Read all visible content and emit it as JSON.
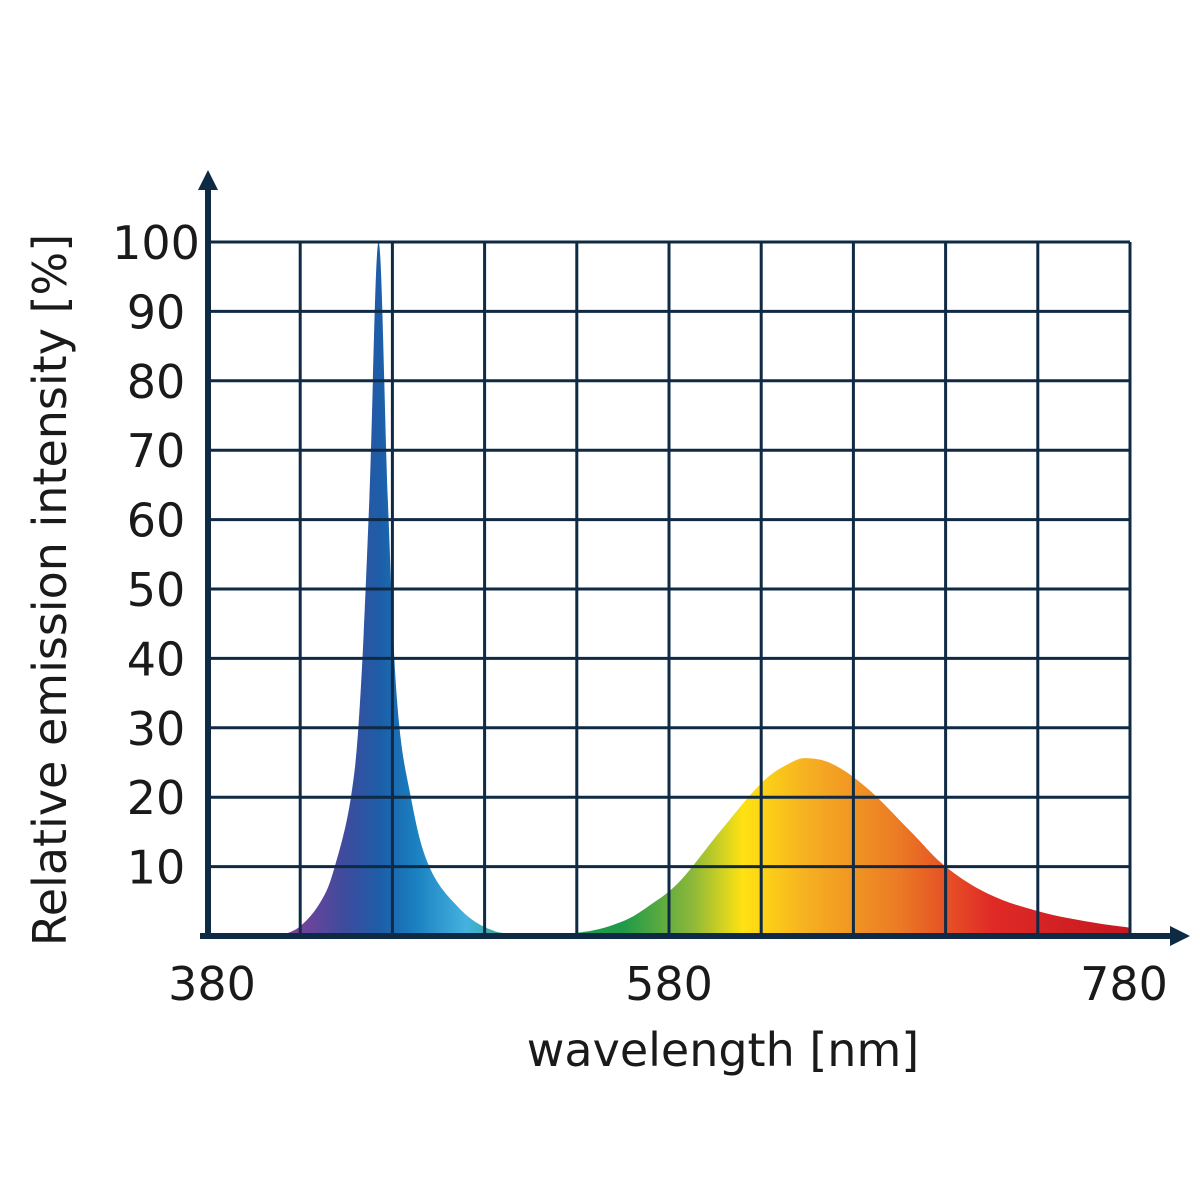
{
  "chart_data": {
    "type": "area",
    "title": "",
    "xlabel": "wavelength [nm]",
    "ylabel": "Relative emission intensity [%]",
    "xlim": [
      380,
      780
    ],
    "ylim": [
      0,
      100
    ],
    "grid": true,
    "x_grid_step": 40,
    "y_grid_step": 10,
    "x_tick_labels": [
      "380",
      "580",
      "780"
    ],
    "x_tick_values": [
      380,
      580,
      780
    ],
    "y_tick_labels": [
      "10",
      "20",
      "30",
      "40",
      "50",
      "60",
      "70",
      "80",
      "90",
      "100"
    ],
    "y_tick_values": [
      10,
      20,
      30,
      40,
      50,
      60,
      70,
      80,
      90,
      100
    ],
    "series": [
      {
        "x": [
          411,
          420,
          429,
          435,
          442,
          446,
          450,
          454,
          458,
          462,
          468,
          476,
          489,
          502,
          515,
          541,
          559,
          572,
          585,
          602,
          620,
          633,
          641,
          652,
          667,
          685,
          700,
          719,
          741,
          763,
          780
        ],
        "y": [
          0,
          1.4,
          5,
          10,
          20,
          34,
          63,
          100,
          63,
          34,
          20,
          10,
          4,
          1,
          0.3,
          0.5,
          2,
          4.5,
          8,
          15,
          22,
          25,
          25.6,
          24.6,
          21,
          15,
          10,
          6,
          3.5,
          2,
          1.2
        ]
      }
    ],
    "fill": "spectral gradient by wavelength",
    "spectrum_colors": [
      {
        "nm": 411,
        "color": "#8a3f98"
      },
      {
        "nm": 440,
        "color": "#3c4c9e"
      },
      {
        "nm": 455,
        "color": "#1c5ea8"
      },
      {
        "nm": 470,
        "color": "#1a80c0"
      },
      {
        "nm": 492,
        "color": "#45b2e0"
      },
      {
        "nm": 520,
        "color": "#2a9a55"
      },
      {
        "nm": 560,
        "color": "#1f9a48"
      },
      {
        "nm": 590,
        "color": "#8cb83a"
      },
      {
        "nm": 612,
        "color": "#ffe212"
      },
      {
        "nm": 640,
        "color": "#f6b021"
      },
      {
        "nm": 680,
        "color": "#eb7a25"
      },
      {
        "nm": 720,
        "color": "#e02a26"
      },
      {
        "nm": 780,
        "color": "#c41820"
      }
    ],
    "axis_color": "#0f2a44"
  }
}
